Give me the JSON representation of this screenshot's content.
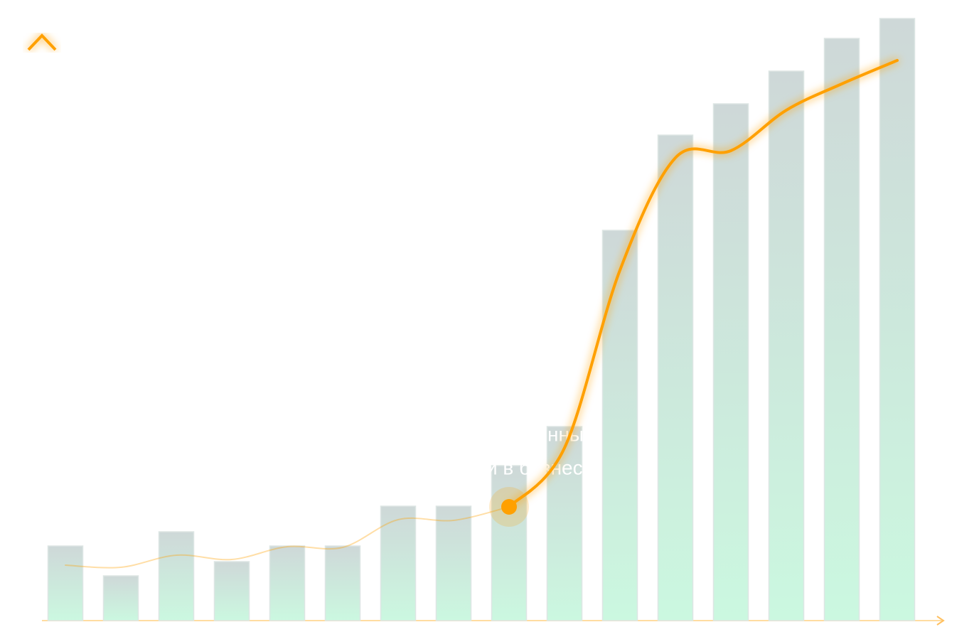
{
  "chart_data": {
    "type": "bar",
    "categories": [
      null,
      null,
      null,
      null,
      null,
      null,
      null,
      null,
      null,
      null,
      null,
      null,
      null,
      null,
      null,
      null
    ],
    "values": [
      105,
      63,
      125,
      83,
      105,
      105,
      161,
      161,
      218,
      273,
      549,
      683,
      727,
      773,
      819,
      847
    ],
    "series": [
      {
        "color": "#ffa000",
        "values": [
          78,
          75,
          92,
          86,
          104,
          103,
          142,
          141,
          160,
          243,
          493,
          651,
          661,
          718,
          755,
          788
        ]
      }
    ],
    "ylim": [
      0,
      873
    ],
    "annotations": [
      "нные",
      "и в бизнес"
    ]
  }
}
